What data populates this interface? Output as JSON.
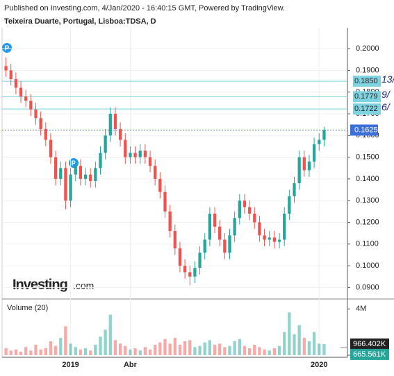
{
  "chart_data": {
    "type": "candlestick",
    "header": "Published on Investing.com, 4/Jan/2020 - 16:40:15 GMT, Powered by TradingView.",
    "title": "Teixeira Duarte, Portugal, Lisboa:TDSA, D",
    "logo": "Investing",
    "logo_suffix": ".com",
    "categories": [
      null,
      null,
      null,
      null,
      null,
      null,
      null,
      null,
      null,
      null,
      null,
      null,
      null,
      "2019",
      null,
      null,
      null,
      null,
      null,
      null,
      null,
      null,
      null,
      null,
      null,
      "Abr",
      null,
      null,
      null,
      null,
      null,
      null,
      null,
      null,
      null,
      null,
      null,
      null,
      null,
      null,
      null,
      null,
      null,
      null,
      null,
      null,
      null,
      null,
      null,
      null,
      null,
      null,
      null,
      null,
      null,
      null,
      null,
      null,
      null,
      null,
      null,
      null,
      null,
      "2020",
      null
    ],
    "open": [
      0.192,
      0.19,
      0.186,
      0.182,
      0.178,
      0.176,
      0.172,
      0.168,
      0.163,
      0.158,
      0.15,
      0.14,
      0.145,
      0.13,
      0.142,
      0.146,
      0.14,
      0.142,
      0.139,
      0.145,
      0.152,
      0.16,
      0.17,
      0.163,
      0.158,
      0.15,
      0.152,
      0.15,
      0.153,
      0.15,
      0.146,
      0.14,
      0.134,
      0.125,
      0.116,
      0.108,
      0.1,
      0.097,
      0.095,
      0.099,
      0.106,
      0.112,
      0.124,
      0.118,
      0.112,
      0.106,
      0.114,
      0.122,
      0.13,
      0.127,
      0.124,
      0.12,
      0.114,
      0.112,
      0.113,
      0.111,
      0.112,
      0.124,
      0.132,
      0.138,
      0.15,
      0.144,
      0.148,
      0.156,
      0.158
    ],
    "high": [
      0.196,
      0.193,
      0.189,
      0.185,
      0.181,
      0.179,
      0.175,
      0.171,
      0.166,
      0.161,
      0.153,
      0.148,
      0.148,
      0.145,
      0.149,
      0.149,
      0.145,
      0.145,
      0.148,
      0.155,
      0.163,
      0.173,
      0.173,
      0.166,
      0.161,
      0.155,
      0.155,
      0.156,
      0.156,
      0.153,
      0.149,
      0.143,
      0.137,
      0.128,
      0.119,
      0.111,
      0.103,
      0.1,
      0.102,
      0.109,
      0.115,
      0.127,
      0.127,
      0.121,
      0.115,
      0.117,
      0.125,
      0.133,
      0.133,
      0.13,
      0.127,
      0.123,
      0.117,
      0.116,
      0.116,
      0.115,
      0.127,
      0.135,
      0.141,
      0.153,
      0.153,
      0.151,
      0.159,
      0.161,
      0.164
    ],
    "low": [
      0.187,
      0.183,
      0.179,
      0.175,
      0.173,
      0.169,
      0.165,
      0.16,
      0.155,
      0.147,
      0.137,
      0.137,
      0.126,
      0.127,
      0.139,
      0.137,
      0.137,
      0.136,
      0.136,
      0.142,
      0.149,
      0.157,
      0.16,
      0.155,
      0.147,
      0.147,
      0.147,
      0.147,
      0.147,
      0.143,
      0.137,
      0.131,
      0.122,
      0.113,
      0.105,
      0.097,
      0.094,
      0.091,
      0.092,
      0.096,
      0.103,
      0.109,
      0.115,
      0.109,
      0.103,
      0.103,
      0.111,
      0.119,
      0.124,
      0.121,
      0.117,
      0.111,
      0.109,
      0.109,
      0.108,
      0.108,
      0.109,
      0.121,
      0.129,
      0.135,
      0.141,
      0.141,
      0.145,
      0.153,
      0.155
    ],
    "close": [
      0.19,
      0.186,
      0.182,
      0.178,
      0.176,
      0.172,
      0.168,
      0.163,
      0.158,
      0.15,
      0.14,
      0.145,
      0.13,
      0.142,
      0.146,
      0.14,
      0.142,
      0.139,
      0.145,
      0.152,
      0.16,
      0.17,
      0.163,
      0.158,
      0.15,
      0.152,
      0.15,
      0.153,
      0.15,
      0.146,
      0.14,
      0.134,
      0.125,
      0.116,
      0.108,
      0.1,
      0.097,
      0.095,
      0.099,
      0.106,
      0.112,
      0.124,
      0.118,
      0.112,
      0.106,
      0.114,
      0.122,
      0.13,
      0.127,
      0.124,
      0.12,
      0.114,
      0.112,
      0.113,
      0.111,
      0.112,
      0.124,
      0.132,
      0.138,
      0.15,
      0.144,
      0.148,
      0.156,
      0.158,
      0.1625
    ],
    "up_color": "#26a69a",
    "down_color": "#ef5350",
    "ylim": [
      0.085,
      0.209
    ],
    "yticks": [
      {
        "value": 0.09,
        "label": "0.0900"
      },
      {
        "value": 0.1,
        "label": "0.1000"
      },
      {
        "value": 0.11,
        "label": "0.1100"
      },
      {
        "value": 0.12,
        "label": "0.1200"
      },
      {
        "value": 0.13,
        "label": "0.1300"
      },
      {
        "value": 0.14,
        "label": "0.1400"
      },
      {
        "value": 0.15,
        "label": "0.1500"
      },
      {
        "value": 0.16,
        "label": "0.1600"
      },
      {
        "value": 0.17,
        "label": "0.1700"
      },
      {
        "value": 0.18,
        "label": "0.1800"
      },
      {
        "value": 0.19,
        "label": "0.1900"
      },
      {
        "value": 0.2,
        "label": "0.2000"
      }
    ],
    "levels": [
      {
        "value": 0.185,
        "label": "0.1850"
      },
      0.1779,
      0.1722
    ],
    "level_color": "#7fd3e0",
    "level_notes": [
      "13/",
      "9/",
      "6/"
    ],
    "last_price": 0.1625,
    "last_price_color": "#3d6fd9",
    "volume_title": "Volume (20)",
    "volume": [
      600000,
      400000,
      500000,
      300000,
      700000,
      400000,
      900000,
      500000,
      600000,
      1200000,
      800000,
      1500000,
      2500000,
      1000000,
      700000,
      500000,
      600000,
      400000,
      900000,
      1600000,
      2200000,
      3500000,
      1300000,
      1000000,
      800000,
      500000,
      600000,
      400000,
      700000,
      500000,
      900000,
      1100000,
      1400000,
      1000000,
      1500000,
      900000,
      1200000,
      1300000,
      700000,
      800000,
      1100000,
      1300000,
      900000,
      1000000,
      700000,
      800000,
      1200000,
      1400000,
      800000,
      600000,
      900000,
      700000,
      500000,
      400000,
      600000,
      800000,
      2000000,
      3700000,
      1800000,
      2600000,
      1500000,
      1200000,
      2000000,
      1000000,
      966402
    ],
    "volume_last_label": "966.402K",
    "volume_ma_last": {
      "value": 665561,
      "label": "665.561K"
    },
    "vlim": [
      0,
      4500000
    ],
    "vticks": [
      0,
      {
        "value": 4000000,
        "label": "4M"
      }
    ]
  }
}
